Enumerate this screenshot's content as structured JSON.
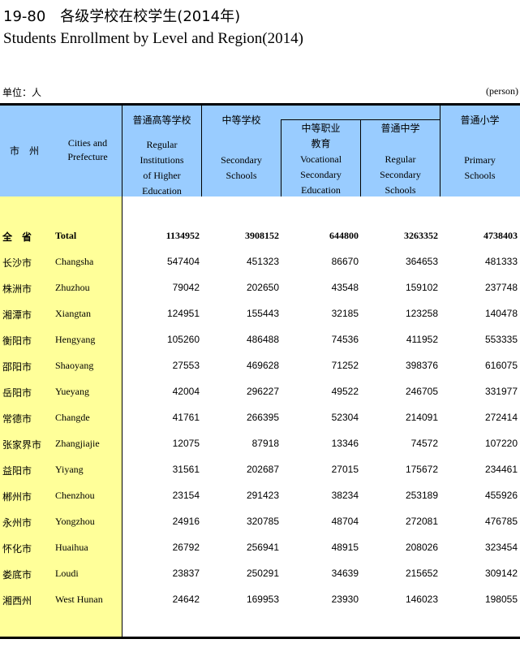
{
  "title": {
    "cn": "19-80　各级学校在校学生(2014年)",
    "en": "Students Enrollment by Level and Region(2014)"
  },
  "unit": {
    "cn": "单位：人",
    "en": "(person)"
  },
  "colors": {
    "header_bg": "#99ccff",
    "region_col_bg": "#ffff99"
  },
  "headers": {
    "city_cn": "市　州",
    "city_en": [
      "Cities and",
      "Prefecture"
    ],
    "higher": {
      "cn": "普通高等学校",
      "en": [
        "Regular",
        "Institutions",
        "of Higher",
        "Education"
      ]
    },
    "secondary": {
      "cn": "中等学校",
      "en": [
        "Secondary",
        "Schools"
      ]
    },
    "vocational": {
      "cn": [
        "中等职业",
        "教育"
      ],
      "en": [
        "Vocational",
        "Secondary",
        "Education"
      ]
    },
    "regular_secondary": {
      "cn": "普通中学",
      "en": [
        "Regular",
        "Secondary",
        "Schools"
      ]
    },
    "primary": {
      "cn": "普通小学",
      "en": [
        "Primary",
        "Schools"
      ]
    }
  },
  "rows": [
    {
      "cn": "全　省",
      "en": "Total",
      "values": [
        "1134952",
        "3908152",
        "644800",
        "3263352",
        "4738403"
      ],
      "bold": true
    },
    {
      "cn": "长沙市",
      "en": "Changsha",
      "values": [
        "547404",
        "451323",
        "86670",
        "364653",
        "481333"
      ]
    },
    {
      "cn": "株洲市",
      "en": "Zhuzhou",
      "values": [
        "79042",
        "202650",
        "43548",
        "159102",
        "237748"
      ]
    },
    {
      "cn": "湘潭市",
      "en": "Xiangtan",
      "values": [
        "124951",
        "155443",
        "32185",
        "123258",
        "140478"
      ]
    },
    {
      "cn": "衡阳市",
      "en": "Hengyang",
      "values": [
        "105260",
        "486488",
        "74536",
        "411952",
        "553335"
      ]
    },
    {
      "cn": "邵阳市",
      "en": "Shaoyang",
      "values": [
        "27553",
        "469628",
        "71252",
        "398376",
        "616075"
      ]
    },
    {
      "cn": "岳阳市",
      "en": "Yueyang",
      "values": [
        "42004",
        "296227",
        "49522",
        "246705",
        "331977"
      ]
    },
    {
      "cn": "常德市",
      "en": "Changde",
      "values": [
        "41761",
        "266395",
        "52304",
        "214091",
        "272414"
      ]
    },
    {
      "cn": "张家界市",
      "en": "Zhangjiajie",
      "values": [
        "12075",
        "87918",
        "13346",
        "74572",
        "107220"
      ]
    },
    {
      "cn": "益阳市",
      "en": "Yiyang",
      "values": [
        "31561",
        "202687",
        "27015",
        "175672",
        "234461"
      ]
    },
    {
      "cn": "郴州市",
      "en": "Chenzhou",
      "values": [
        "23154",
        "291423",
        "38234",
        "253189",
        "455926"
      ]
    },
    {
      "cn": "永州市",
      "en": "Yongzhou",
      "values": [
        "24916",
        "320785",
        "48704",
        "272081",
        "476785"
      ]
    },
    {
      "cn": "怀化市",
      "en": "Huaihua",
      "values": [
        "26792",
        "256941",
        "48915",
        "208026",
        "323454"
      ]
    },
    {
      "cn": "娄底市",
      "en": "Loudi",
      "values": [
        "23837",
        "250291",
        "34639",
        "215652",
        "309142"
      ]
    },
    {
      "cn": "湘西州",
      "en": "West Hunan",
      "values": [
        "24642",
        "169953",
        "23930",
        "146023",
        "198055"
      ]
    }
  ]
}
